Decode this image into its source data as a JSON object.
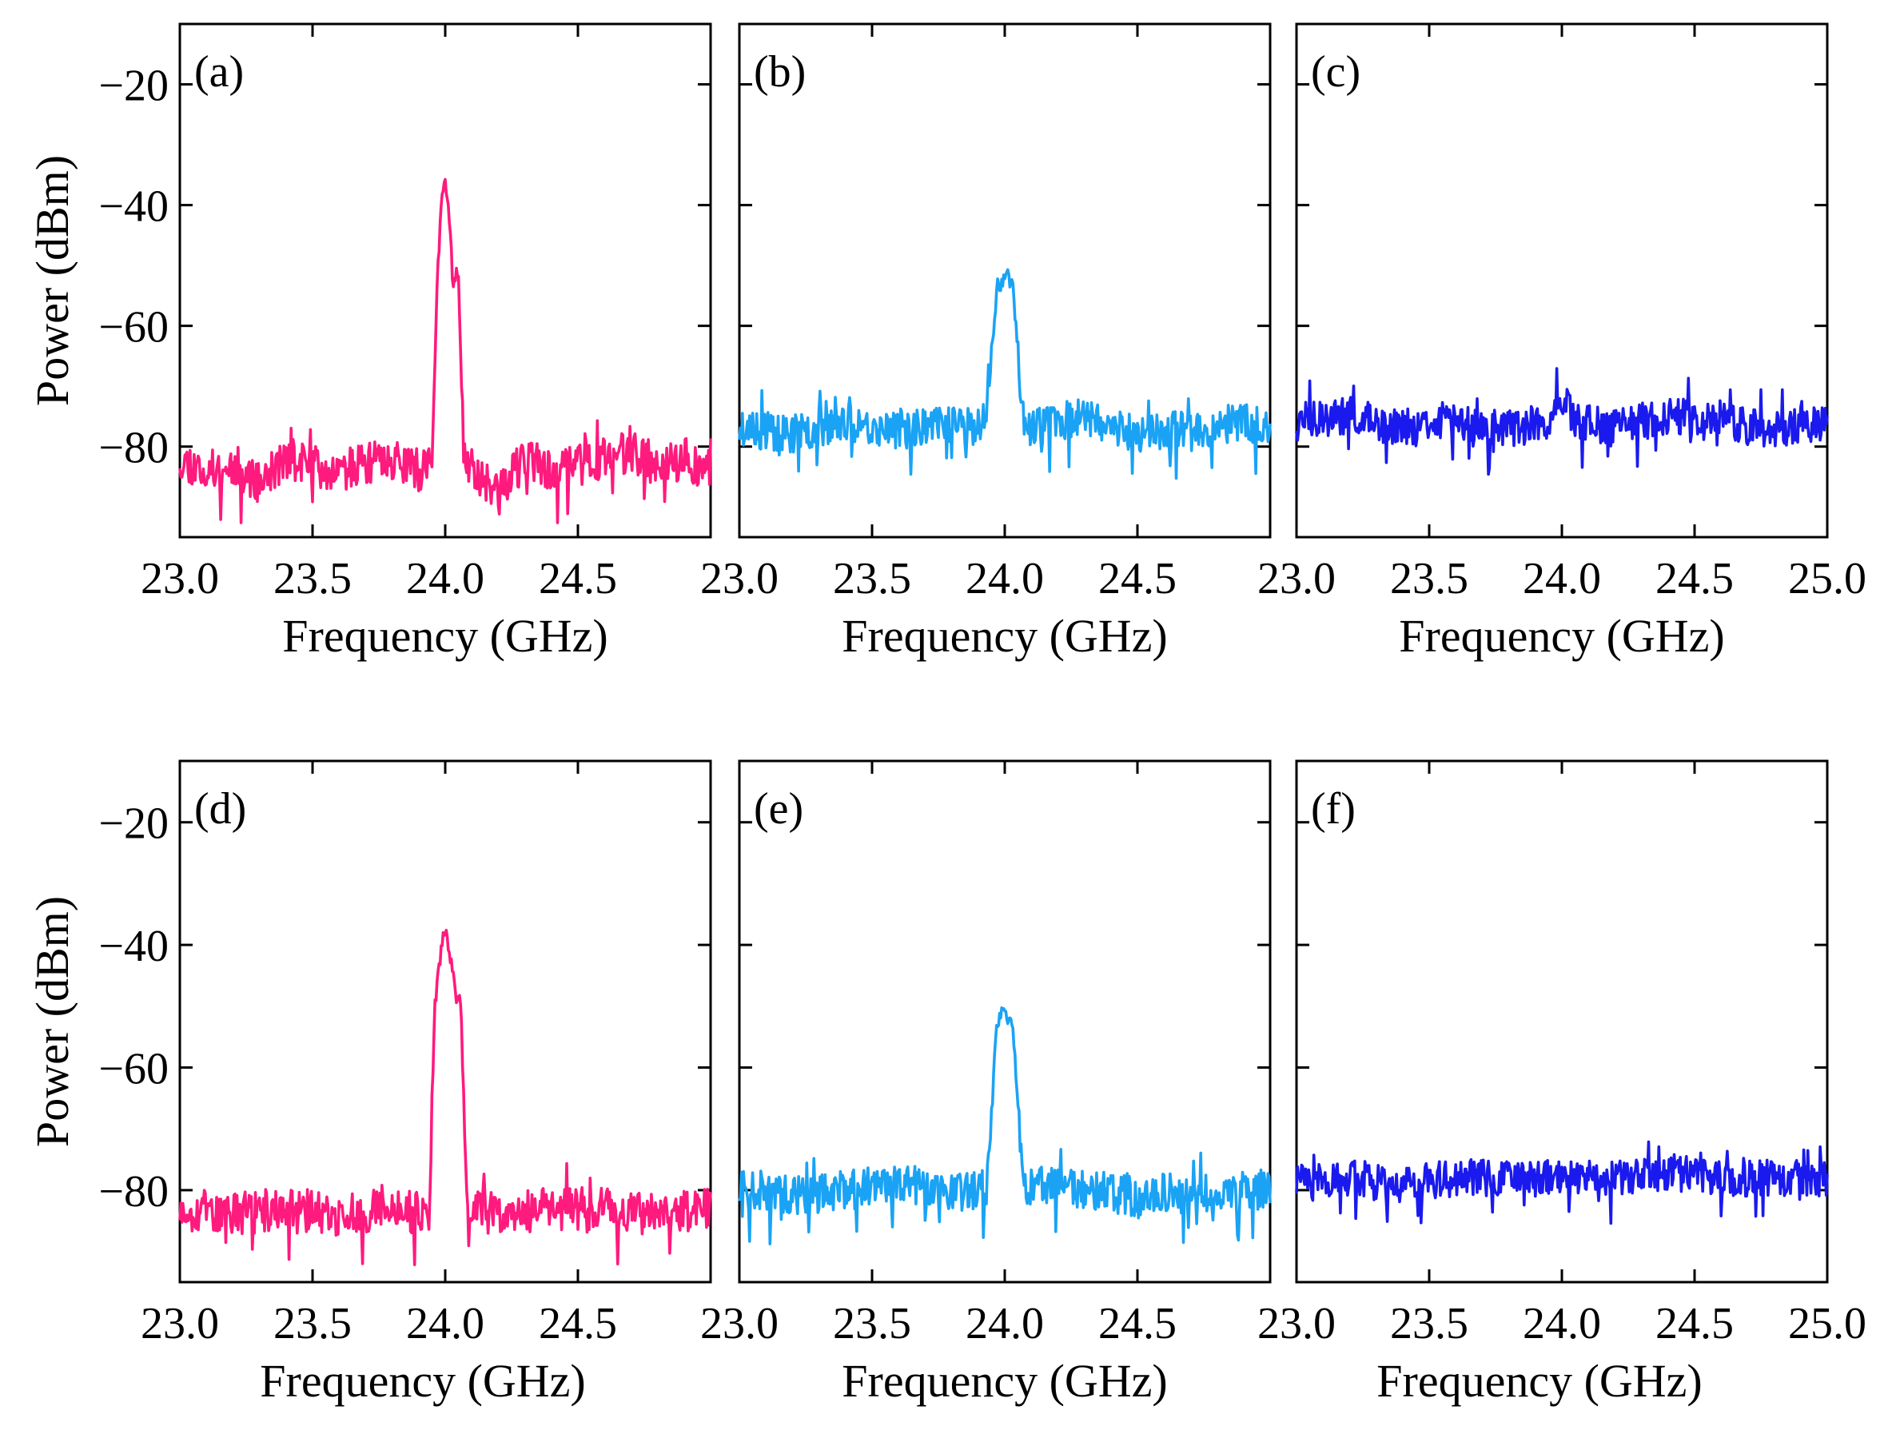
{
  "colors": {
    "magenta": "#ff1a7e",
    "light_blue": "#1aa3f5",
    "blue": "#1a1aee"
  },
  "chart_data": [
    {
      "type": "line",
      "panel_label": "(a)",
      "xlabel": "Frequency (GHz)",
      "ylabel": "Power (dBm)",
      "xlim": [
        23.0,
        25.0
      ],
      "ylim": [
        -95,
        -10
      ],
      "x_ticks": [
        "23.0",
        "23.5",
        "24.0",
        "24.5"
      ],
      "y_ticks": [
        "−20",
        "−40",
        "−60",
        "−80"
      ],
      "x_tick_values": [
        23.0,
        23.5,
        24.0,
        24.5
      ],
      "y_tick_values": [
        -20,
        -40,
        -60,
        -80
      ],
      "series": [
        {
          "name": "(a)",
          "color": "#ff1a7e",
          "x": [
            23.0,
            23.1,
            23.2,
            23.3,
            23.4,
            23.5,
            23.6,
            23.7,
            23.8,
            23.9,
            23.95,
            23.97,
            23.99,
            24.0,
            24.01,
            24.03,
            24.05,
            24.07,
            24.1,
            24.2,
            24.3,
            24.4,
            24.5,
            24.6,
            24.7,
            24.8,
            24.9,
            25.0
          ],
          "values": [
            -82,
            -84,
            -83,
            -86,
            -82,
            -83,
            -84,
            -83,
            -82,
            -84,
            -83,
            -52,
            -37,
            -36,
            -40,
            -51,
            -52,
            -82,
            -83,
            -88,
            -82,
            -84,
            -83,
            -82,
            -81,
            -83,
            -82,
            -84
          ],
          "noise": 3.5,
          "seed": 11
        }
      ]
    },
    {
      "type": "line",
      "panel_label": "(b)",
      "xlabel": "Frequency (GHz)",
      "ylabel": "",
      "xlim": [
        23.0,
        25.0
      ],
      "ylim": [
        -95,
        -10
      ],
      "x_ticks": [
        "23.0",
        "23.5",
        "24.0",
        "24.5"
      ],
      "y_ticks": [],
      "x_tick_values": [
        23.0,
        23.5,
        24.0,
        24.5
      ],
      "y_tick_values": [
        -20,
        -40,
        -60,
        -80
      ],
      "series": [
        {
          "name": "(b)",
          "color": "#1aa3f5",
          "x": [
            23.0,
            23.2,
            23.4,
            23.6,
            23.8,
            23.93,
            23.97,
            24.0,
            24.03,
            24.07,
            24.1,
            24.3,
            24.5,
            24.7,
            24.9,
            25.0
          ],
          "values": [
            -77,
            -78,
            -76,
            -77,
            -76,
            -77,
            -54,
            -52,
            -53,
            -76,
            -77,
            -75,
            -78,
            -77,
            -76,
            -77
          ],
          "noise": 3.2,
          "seed": 23
        }
      ]
    },
    {
      "type": "line",
      "panel_label": "(c)",
      "xlabel": "Frequency (GHz)",
      "ylabel": "",
      "xlim": [
        23.0,
        25.0
      ],
      "ylim": [
        -95,
        -10
      ],
      "x_ticks": [
        "23.0",
        "23.5",
        "24.0",
        "24.5",
        "25.0"
      ],
      "y_ticks": [],
      "x_tick_values": [
        23.0,
        23.5,
        24.0,
        24.5,
        25.0
      ],
      "y_tick_values": [
        -20,
        -40,
        -60,
        -80
      ],
      "series": [
        {
          "name": "(c)",
          "color": "#1a1aee",
          "x": [
            23.0,
            23.2,
            23.4,
            23.6,
            23.8,
            23.95,
            24.0,
            24.05,
            24.2,
            24.4,
            24.6,
            24.8,
            25.0
          ],
          "values": [
            -76,
            -75,
            -77,
            -76,
            -77,
            -76,
            -71,
            -76,
            -77,
            -75,
            -76,
            -77,
            -76
          ],
          "noise": 3.2,
          "seed": 37
        }
      ]
    },
    {
      "type": "line",
      "panel_label": "(d)",
      "xlabel": "Frequency (GHz)",
      "ylabel": "Power (dBm)",
      "xlim": [
        23.0,
        25.0
      ],
      "ylim": [
        -95,
        -10
      ],
      "x_ticks": [
        "23.0",
        "23.5",
        "24.0",
        "24.5"
      ],
      "y_ticks": [
        "−20",
        "−40",
        "−60",
        "−80"
      ],
      "x_tick_values": [
        23.0,
        23.5,
        24.0,
        24.5
      ],
      "y_tick_values": [
        -20,
        -40,
        -60,
        -80
      ],
      "series": [
        {
          "name": "(d)",
          "color": "#ff1a7e",
          "x": [
            23.0,
            23.2,
            23.4,
            23.6,
            23.8,
            23.94,
            23.96,
            23.99,
            24.0,
            24.02,
            24.04,
            24.06,
            24.08,
            24.2,
            24.4,
            24.6,
            24.8,
            25.0
          ],
          "values": [
            -83,
            -84,
            -83,
            -84,
            -83,
            -84,
            -50,
            -39,
            -38,
            -42,
            -48,
            -50,
            -83,
            -84,
            -83,
            -83,
            -84,
            -83
          ],
          "noise": 3.5,
          "seed": 53
        }
      ]
    },
    {
      "type": "line",
      "panel_label": "(e)",
      "xlabel": "Frequency (GHz)",
      "ylabel": "",
      "xlim": [
        23.0,
        25.0
      ],
      "ylim": [
        -95,
        -10
      ],
      "x_ticks": [
        "23.0",
        "23.5",
        "24.0",
        "24.5"
      ],
      "y_ticks": [],
      "x_tick_values": [
        23.0,
        23.5,
        24.0,
        24.5
      ],
      "y_tick_values": [
        -20,
        -40,
        -60,
        -80
      ],
      "series": [
        {
          "name": "(e)",
          "color": "#1aa3f5",
          "x": [
            23.0,
            23.2,
            23.4,
            23.6,
            23.8,
            23.93,
            23.97,
            24.0,
            24.03,
            24.07,
            24.1,
            24.3,
            24.5,
            24.7,
            24.9,
            25.0
          ],
          "values": [
            -80,
            -81,
            -80,
            -79,
            -80,
            -80,
            -53,
            -51,
            -53,
            -80,
            -79,
            -80,
            -81,
            -80,
            -80,
            -80
          ],
          "noise": 3.3,
          "seed": 71
        }
      ]
    },
    {
      "type": "line",
      "panel_label": "(f)",
      "xlabel": "Frequency (GHz)",
      "ylabel": "",
      "xlim": [
        23.0,
        25.0
      ],
      "ylim": [
        -95,
        -10
      ],
      "x_ticks": [
        "23.0",
        "23.5",
        "24.0",
        "24.5",
        "25.0"
      ],
      "y_ticks": [],
      "x_tick_values": [
        23.0,
        23.5,
        24.0,
        24.5,
        25.0
      ],
      "y_tick_values": [
        -20,
        -40,
        -60,
        -80
      ],
      "series": [
        {
          "name": "(f)",
          "color": "#1a1aee",
          "x": [
            23.0,
            23.2,
            23.4,
            23.6,
            23.8,
            24.0,
            24.2,
            24.4,
            24.6,
            24.8,
            25.0
          ],
          "values": [
            -79,
            -78,
            -79,
            -78,
            -78,
            -78,
            -78,
            -77,
            -78,
            -78,
            -78
          ],
          "noise": 3.0,
          "seed": 89
        }
      ]
    }
  ]
}
